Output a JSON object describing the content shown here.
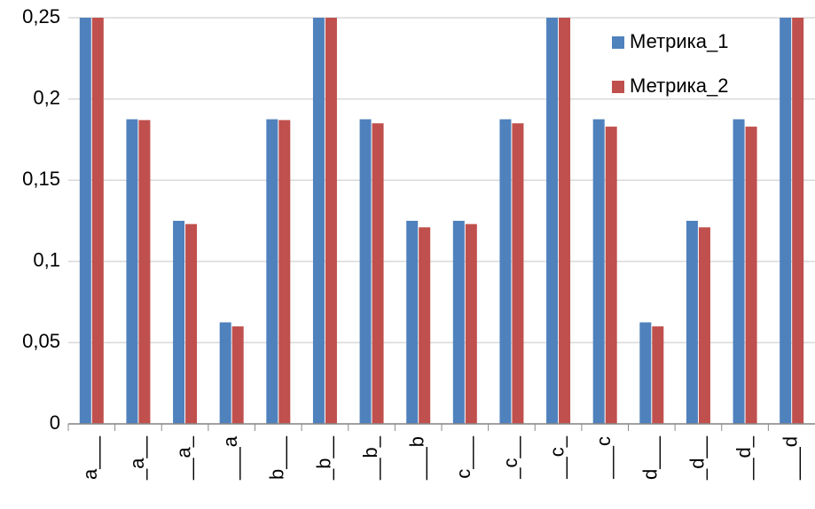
{
  "chart_data": {
    "type": "bar",
    "categories": [
      "a___",
      "_a__",
      "__a_",
      "___a",
      "b___",
      "_b__",
      "__b_",
      "___b",
      "c___",
      "_c__",
      "__c_",
      "___c",
      "d___",
      "_d__",
      "__d_",
      "___d"
    ],
    "series": [
      {
        "name": "Метрика_1",
        "color": "#4f81bd",
        "values": [
          0.25,
          0.1875,
          0.125,
          0.0625,
          0.1875,
          0.25,
          0.1875,
          0.125,
          0.125,
          0.1875,
          0.25,
          0.1875,
          0.0625,
          0.125,
          0.1875,
          0.25
        ]
      },
      {
        "name": "Метрика_2",
        "color": "#c0504d",
        "values": [
          0.25,
          0.187,
          0.123,
          0.06,
          0.187,
          0.25,
          0.185,
          0.121,
          0.123,
          0.185,
          0.25,
          0.183,
          0.06,
          0.121,
          0.183,
          0.25
        ]
      }
    ],
    "ylim": [
      0,
      0.25
    ],
    "yticks": [
      0,
      {
        "value": 0.05,
        "label": "0,05"
      },
      {
        "value": 0.1,
        "label": "0,1"
      },
      {
        "value": 0.15,
        "label": "0,15"
      },
      {
        "value": 0.2,
        "label": "0,2"
      },
      {
        "value": 0.25,
        "label": "0,25"
      }
    ],
    "grid": true,
    "legend": "upper right"
  }
}
